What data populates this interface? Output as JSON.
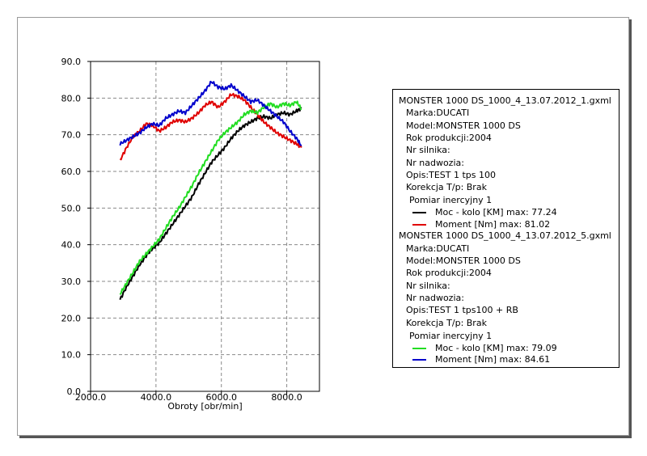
{
  "chart_data": {
    "type": "line",
    "xlabel": "Obroty [obr/min]",
    "xlim": [
      2000,
      9000
    ],
    "ylim": [
      0,
      90
    ],
    "x_ticks": [
      2000,
      4000,
      6000,
      8000
    ],
    "x_tick_labels": [
      "2000.0",
      "4000.0",
      "6000.0",
      "8000.0"
    ],
    "y_ticks": [
      0,
      10,
      20,
      30,
      40,
      50,
      60,
      70,
      80,
      90
    ],
    "y_tick_labels": [
      "0.0",
      "10.0",
      "20.0",
      "30.0",
      "40.0",
      "50.0",
      "60.0",
      "70.0",
      "80.0",
      "90.0"
    ],
    "grid": true,
    "legend_position": "right",
    "series": [
      {
        "name": "Moc - kolo [KM] max: 77.24",
        "color": "#000000",
        "x": [
          2900,
          3100,
          3300,
          3500,
          3700,
          3900,
          4100,
          4300,
          4500,
          4700,
          4900,
          5100,
          5300,
          5500,
          5700,
          5900,
          6100,
          6300,
          6500,
          6700,
          6900,
          7100,
          7300,
          7500,
          7700,
          7900,
          8100,
          8300,
          8450
        ],
        "values": [
          25.0,
          28.5,
          31.5,
          34.5,
          37.0,
          39.0,
          40.5,
          43.0,
          45.5,
          48.0,
          50.5,
          53.0,
          56.5,
          59.5,
          62.5,
          64.5,
          66.5,
          69.0,
          71.0,
          72.5,
          73.5,
          74.5,
          75.0,
          74.5,
          75.5,
          76.0,
          75.5,
          76.5,
          77.2
        ]
      },
      {
        "name": "Moment [Nm] max: 81.02",
        "color": "#e00000",
        "x": [
          2900,
          3100,
          3300,
          3500,
          3700,
          3900,
          4100,
          4300,
          4500,
          4700,
          4900,
          5100,
          5300,
          5500,
          5700,
          5900,
          6100,
          6300,
          6500,
          6700,
          6900,
          7100,
          7300,
          7500,
          7700,
          7900,
          8100,
          8300,
          8450
        ],
        "values": [
          63.0,
          66.5,
          69.5,
          71.0,
          73.0,
          72.5,
          71.0,
          72.0,
          73.5,
          74.0,
          73.5,
          74.5,
          76.0,
          78.0,
          79.0,
          77.5,
          79.0,
          81.0,
          80.5,
          79.5,
          77.5,
          75.5,
          73.5,
          72.0,
          70.5,
          69.5,
          68.5,
          67.5,
          66.5
        ]
      },
      {
        "name": "Moc - kolo [KM] max: 79.09",
        "color": "#22dd22",
        "x": [
          2900,
          3100,
          3300,
          3500,
          3700,
          3900,
          4100,
          4300,
          4500,
          4700,
          4900,
          5100,
          5300,
          5500,
          5700,
          5900,
          6100,
          6300,
          6500,
          6700,
          6900,
          7100,
          7300,
          7500,
          7700,
          7900,
          8100,
          8300,
          8450
        ],
        "values": [
          26.5,
          29.5,
          32.5,
          35.5,
          37.5,
          39.5,
          41.5,
          44.5,
          47.5,
          50.0,
          53.0,
          56.0,
          59.5,
          62.5,
          65.5,
          68.5,
          70.5,
          72.0,
          73.5,
          75.5,
          76.5,
          76.0,
          77.5,
          78.5,
          77.5,
          78.5,
          78.0,
          79.0,
          77.0
        ]
      },
      {
        "name": "Moment [Nm] max: 84.61",
        "color": "#0000cc",
        "x": [
          2900,
          3100,
          3300,
          3500,
          3700,
          3900,
          4100,
          4300,
          4500,
          4700,
          4900,
          5100,
          5300,
          5500,
          5700,
          5900,
          6100,
          6300,
          6500,
          6700,
          6900,
          7100,
          7300,
          7500,
          7700,
          7900,
          8100,
          8300,
          8450
        ],
        "values": [
          67.5,
          68.5,
          69.5,
          70.5,
          72.0,
          73.0,
          72.5,
          74.5,
          75.5,
          76.5,
          76.0,
          78.0,
          80.0,
          82.0,
          84.5,
          83.0,
          82.5,
          83.5,
          82.0,
          80.5,
          79.0,
          79.5,
          78.0,
          76.5,
          75.0,
          73.5,
          71.0,
          69.0,
          67.0
        ]
      }
    ]
  },
  "legend": {
    "blocks": [
      {
        "file": "MONSTER 1000 DS_1000_4_13.07.2012_1.gxml",
        "info": [
          "Marka:DUCATI",
          "Model:MONSTER 1000 DS",
          "Rok produkcji:2004",
          "Nr silnika:",
          "Nr nadwozia:",
          "Opis:TEST 1 tps 100",
          "Korekcja T/p: Brak"
        ],
        "group": "Pomiar inercyjny 1",
        "entries": [
          {
            "label": "Moc - kolo [KM] max: 77.24",
            "color": "#000000"
          },
          {
            "label": "Moment [Nm] max: 81.02",
            "color": "#e00000"
          }
        ]
      },
      {
        "file": "MONSTER 1000 DS_1000_4_13.07.2012_5.gxml",
        "info": [
          "Marka:DUCATI",
          "Model:MONSTER 1000 DS",
          "Rok produkcji:2004",
          "Nr silnika:",
          "Nr nadwozia:",
          "Opis:TEST 1 tps100 + RB",
          "Korekcja T/p: Brak"
        ],
        "group": "Pomiar inercyjny 1",
        "entries": [
          {
            "label": "Moc - kolo [KM] max: 79.09",
            "color": "#22dd22"
          },
          {
            "label": "Moment [Nm] max: 84.61",
            "color": "#0000cc"
          }
        ]
      }
    ]
  }
}
